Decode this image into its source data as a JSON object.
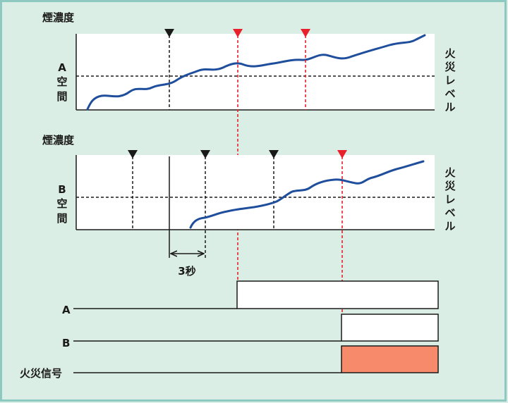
{
  "colors": {
    "background": "#dbeee5",
    "border": "#8ec9c1",
    "plot_bg": "#ffffff",
    "curve": "#1f4e9c",
    "marker_black": "#1a1a1a",
    "marker_red": "#e8202a",
    "fire_signal": "#f78a6b"
  },
  "chart_a": {
    "ylabel": "煙濃度",
    "space_label": [
      "A",
      "空",
      "間"
    ],
    "level_label": [
      "火",
      "災",
      "レ",
      "ベ",
      "ル"
    ]
  },
  "chart_b": {
    "ylabel": "煙濃度",
    "space_label": [
      "B",
      "空",
      "間"
    ],
    "level_label": [
      "火",
      "災",
      "レ",
      "ベ",
      "ル"
    ]
  },
  "interval_label": "3秒",
  "signals": {
    "a_label": "A",
    "b_label": "B",
    "fire_label": "火災信号"
  }
}
